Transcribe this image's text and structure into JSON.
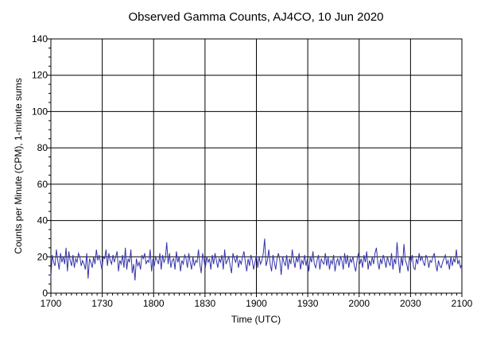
{
  "chart_data": {
    "type": "line",
    "title": "Observed Gamma Counts, AJ4CO, 10 Jun 2020",
    "xlabel": "Time (UTC)",
    "ylabel": "Counts per Minute (CPM), 1-minute sums",
    "xlim": [
      "1700",
      "2100"
    ],
    "ylim": [
      0,
      140
    ],
    "x_ticks": [
      "1700",
      "1730",
      "1800",
      "1830",
      "1900",
      "1930",
      "2000",
      "2030",
      "2100"
    ],
    "y_ticks": [
      0,
      20,
      40,
      60,
      80,
      100,
      120,
      140
    ],
    "grid": true,
    "x_unit": "minute (UTC)",
    "series": [
      {
        "color": "#3333aa",
        "values": [
          9,
          21,
          17,
          15,
          24,
          18,
          13,
          22,
          17,
          20,
          16,
          25,
          12,
          23,
          18,
          15,
          21,
          14,
          19,
          17,
          22,
          20,
          15,
          18,
          16,
          13,
          22,
          8,
          19,
          17,
          14,
          20,
          16,
          24,
          18,
          21,
          17,
          13,
          20,
          19,
          24,
          15,
          22,
          18,
          16,
          21,
          17,
          20,
          23,
          12,
          18,
          16,
          21,
          14,
          25,
          13,
          19,
          17,
          24,
          11,
          16,
          7,
          19,
          15,
          17,
          13,
          21,
          19,
          22,
          16,
          18,
          17,
          24,
          12,
          19,
          15,
          20,
          18,
          16,
          22,
          13,
          21,
          17,
          19,
          28,
          16,
          22,
          14,
          18,
          19,
          13,
          23,
          17,
          20,
          12,
          18,
          16,
          21,
          19,
          14,
          22,
          17,
          13,
          20,
          15,
          18,
          17,
          24,
          16,
          11,
          22,
          18,
          14,
          20,
          17,
          19,
          13,
          21,
          16,
          22,
          18,
          14,
          19,
          17,
          21,
          13,
          24,
          16,
          18,
          20,
          15,
          11,
          22,
          19,
          17,
          21,
          14,
          18,
          16,
          20,
          23,
          17,
          12,
          19,
          15,
          21,
          18,
          13,
          17,
          21,
          14,
          20,
          16,
          18,
          22,
          30,
          15,
          18,
          24,
          16,
          12,
          21,
          17,
          13,
          19,
          22,
          18,
          10,
          20,
          17,
          15,
          21,
          13,
          19,
          16,
          24,
          18,
          14,
          20,
          17,
          22,
          13,
          18,
          16,
          21,
          15,
          19,
          12,
          20,
          17,
          23,
          16,
          14,
          18,
          21,
          13,
          19,
          17,
          16,
          22,
          15,
          20,
          13,
          18,
          16,
          21,
          12,
          17,
          19,
          15,
          20,
          18,
          13,
          22,
          16,
          21,
          14,
          19,
          17,
          20,
          15,
          12,
          18,
          22,
          16,
          19,
          14,
          21,
          17,
          23,
          13,
          18,
          15,
          20,
          16,
          22,
          25,
          17,
          13,
          19,
          16,
          21,
          18,
          14,
          20,
          17,
          15,
          22,
          13,
          19,
          16,
          28,
          18,
          11,
          20,
          15,
          27,
          18,
          16,
          12,
          20,
          17,
          21,
          14,
          13,
          19,
          16,
          22,
          18,
          20,
          17,
          15,
          21,
          19,
          14,
          18,
          17,
          20,
          22,
          16,
          12,
          18,
          15,
          14,
          17,
          19,
          21,
          16,
          18,
          13,
          20,
          15,
          19,
          17,
          24,
          16,
          18,
          14,
          16
        ]
      }
    ]
  }
}
